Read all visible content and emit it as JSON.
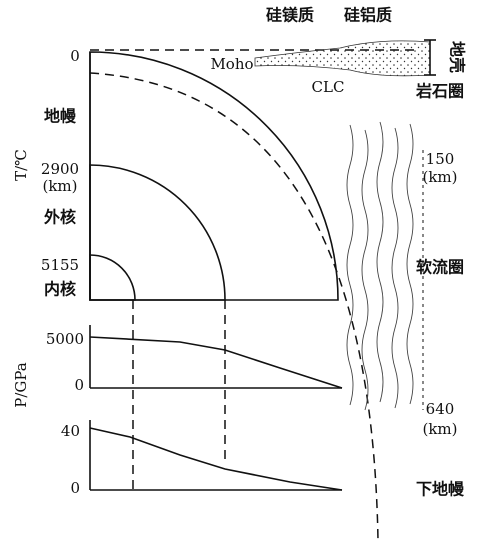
{
  "labels": {
    "sima": "硅镁质",
    "sial": "硅铝质",
    "moho": "Moho",
    "clc": "CLC",
    "crust": "地壳",
    "lithosphere": "岩石圈",
    "surface_depth": "0",
    "mantle": "地幔",
    "outer_core_depth": "2900",
    "outer_core_unit": "(km)",
    "outer_core": "外核",
    "inner_core_depth": "5155",
    "inner_core": "内核",
    "temperature_axis": "T/℃",
    "asth_top": "150",
    "asth_top_unit": "(km)",
    "asthenosphere": "软流圈",
    "asth_bottom": "640",
    "asth_bottom_unit": "(km)",
    "lower_mantle": "下地幔"
  },
  "temperature_panel": {
    "top_label": "5000",
    "zero_label": "0"
  },
  "pressure_panel": {
    "axis_label": "P/GPa",
    "top_label": "40",
    "zero_label": "0"
  }
}
